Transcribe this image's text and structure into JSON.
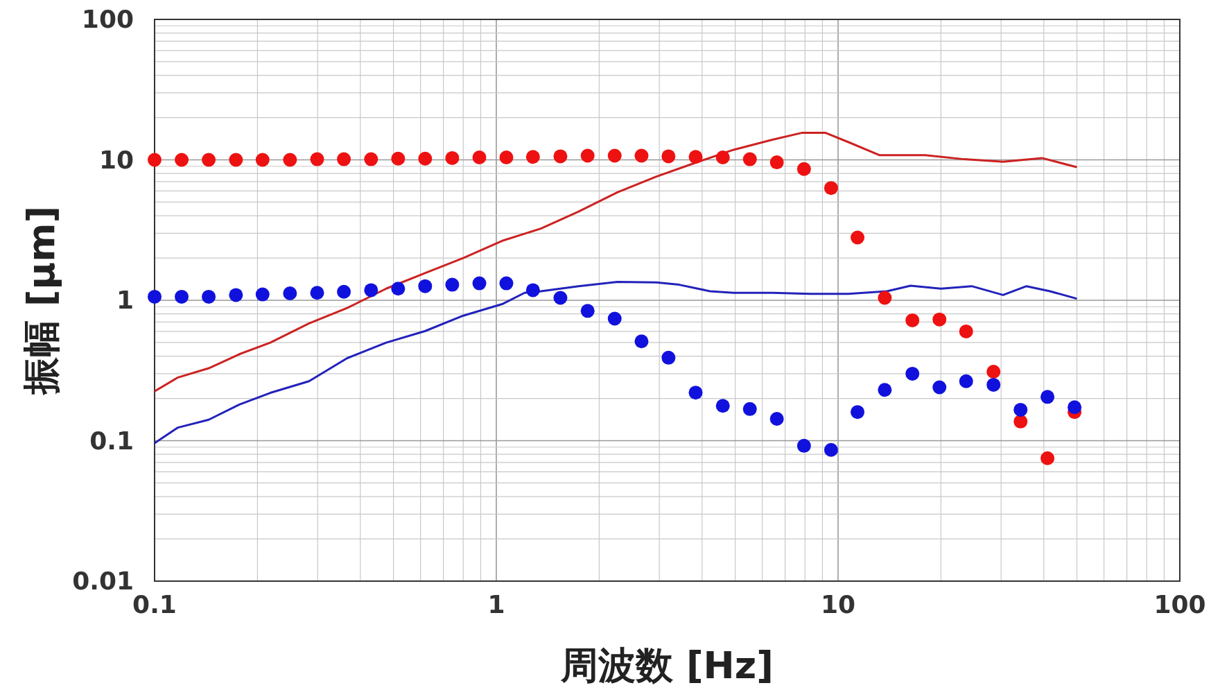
{
  "chart_data": {
    "type": "scatter",
    "xlabel": "周波数 [Hz]",
    "ylabel": "振幅 [μm]",
    "log": "xy",
    "grid": true,
    "xlim": [
      0.1,
      100
    ],
    "xticks": [
      0.1,
      1,
      10,
      100
    ],
    "ylim": [
      0.01,
      100
    ],
    "yticks": [
      0.01,
      0.1,
      1,
      10,
      100
    ],
    "series": [
      {
        "type": "line",
        "color": "#cc2222",
        "x": [
          0.1,
          0.117,
          0.144,
          0.177,
          0.218,
          0.283,
          0.366,
          0.476,
          0.618,
          0.8,
          1.04,
          1.35,
          1.74,
          2.26,
          2.94,
          3.81,
          4.95,
          6.42,
          7.86,
          9.17,
          10.7,
          13.2,
          18,
          23.4,
          30.4,
          39.5,
          49.7
        ],
        "values": [
          0.225,
          0.282,
          0.328,
          0.413,
          0.499,
          0.684,
          0.881,
          1.21,
          1.56,
          2.0,
          2.65,
          3.24,
          4.28,
          5.87,
          7.6,
          9.5,
          11.8,
          13.9,
          15.6,
          15.6,
          13.4,
          10.8,
          10.8,
          10.1,
          9.7,
          10.3,
          8.9
        ]
      },
      {
        "type": "line",
        "color": "#2222bb",
        "x": [
          0.1,
          0.117,
          0.144,
          0.177,
          0.218,
          0.283,
          0.366,
          0.476,
          0.618,
          0.8,
          1.04,
          1.21,
          1.35,
          1.74,
          2.26,
          2.94,
          3.43,
          4.22,
          4.95,
          6.42,
          8.3,
          10.7,
          13.9,
          16.3,
          20,
          24.6,
          30.4,
          35.6,
          41.7,
          49.7
        ],
        "values": [
          0.096,
          0.124,
          0.141,
          0.181,
          0.219,
          0.265,
          0.387,
          0.499,
          0.603,
          0.777,
          0.939,
          1.13,
          1.16,
          1.26,
          1.35,
          1.34,
          1.29,
          1.16,
          1.13,
          1.13,
          1.11,
          1.11,
          1.16,
          1.27,
          1.21,
          1.26,
          1.09,
          1.26,
          1.16,
          1.03
        ]
      },
      {
        "marker": "circle",
        "color": "#ee1111",
        "x": [
          0.1,
          0.12,
          0.144,
          0.173,
          0.207,
          0.249,
          0.299,
          0.358,
          0.43,
          0.516,
          0.619,
          0.743,
          0.892,
          1.07,
          1.28,
          1.54,
          1.85,
          2.22,
          2.66,
          3.19,
          3.83,
          4.6,
          5.52,
          6.62,
          7.95,
          9.54,
          11.4,
          13.7,
          16.5,
          19.8,
          23.7,
          28.5,
          34.2,
          41.0,
          49.2
        ],
        "values": [
          10,
          10,
          10,
          10,
          10,
          10,
          10.1,
          10.1,
          10.1,
          10.2,
          10.2,
          10.3,
          10.4,
          10.4,
          10.5,
          10.6,
          10.7,
          10.7,
          10.7,
          10.6,
          10.5,
          10.4,
          10.1,
          9.6,
          8.6,
          6.3,
          2.8,
          1.04,
          0.72,
          0.73,
          0.6,
          0.31,
          0.137,
          0.075,
          0.16
        ]
      },
      {
        "marker": "circle",
        "color": "#1111dd",
        "x": [
          0.1,
          0.12,
          0.144,
          0.173,
          0.207,
          0.249,
          0.299,
          0.358,
          0.43,
          0.516,
          0.619,
          0.743,
          0.892,
          1.07,
          1.28,
          1.54,
          1.85,
          2.22,
          2.66,
          3.19,
          3.83,
          4.6,
          5.52,
          6.62,
          7.95,
          9.54,
          11.4,
          13.7,
          16.5,
          19.8,
          23.7,
          28.5,
          34.2,
          41.0,
          49.2
        ],
        "values": [
          1.06,
          1.06,
          1.06,
          1.09,
          1.1,
          1.12,
          1.13,
          1.15,
          1.18,
          1.21,
          1.26,
          1.29,
          1.32,
          1.32,
          1.18,
          1.04,
          0.84,
          0.74,
          0.51,
          0.39,
          0.22,
          0.177,
          0.168,
          0.143,
          0.092,
          0.086,
          0.16,
          0.23,
          0.3,
          0.24,
          0.265,
          0.25,
          0.166,
          0.205,
          0.173
        ]
      }
    ]
  }
}
